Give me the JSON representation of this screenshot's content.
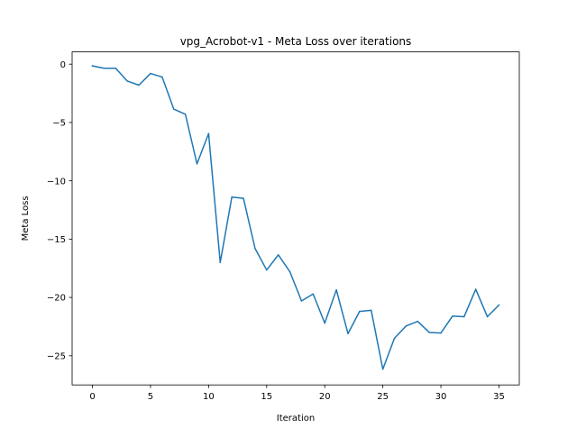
{
  "chart_data": {
    "type": "line",
    "title": "vpg_Acrobot-v1 - Meta Loss over iterations",
    "xlabel": "Iteration",
    "ylabel": "Meta Loss",
    "xlim": [
      -1.75,
      36.75
    ],
    "ylim": [
      -27.5,
      1.05
    ],
    "xticks": [
      0,
      5,
      10,
      15,
      20,
      25,
      30,
      35
    ],
    "yticks": [
      0,
      -5,
      -10,
      -15,
      -20,
      -25
    ],
    "grid": false,
    "legend": "none",
    "series": [
      {
        "color": "#1f77b4",
        "x": [
          0,
          1,
          2,
          3,
          4,
          5,
          6,
          7,
          8,
          9,
          10,
          11,
          12,
          13,
          14,
          15,
          16,
          17,
          18,
          19,
          20,
          21,
          22,
          23,
          24,
          25,
          26,
          27,
          28,
          29,
          30,
          31,
          32,
          33,
          34,
          35
        ],
        "y": [
          -0.15,
          -0.35,
          -0.35,
          -1.45,
          -1.8,
          -0.8,
          -1.1,
          -3.85,
          -4.3,
          -8.55,
          -5.95,
          -17.0,
          -11.4,
          -11.5,
          -15.8,
          -17.65,
          -16.35,
          -17.8,
          -20.3,
          -19.7,
          -22.2,
          -19.35,
          -23.1,
          -21.2,
          -21.1,
          -26.15,
          -23.5,
          -22.45,
          -22.05,
          -23.0,
          -23.05,
          -21.6,
          -21.65,
          -19.3,
          -21.65,
          -20.65
        ]
      }
    ]
  }
}
